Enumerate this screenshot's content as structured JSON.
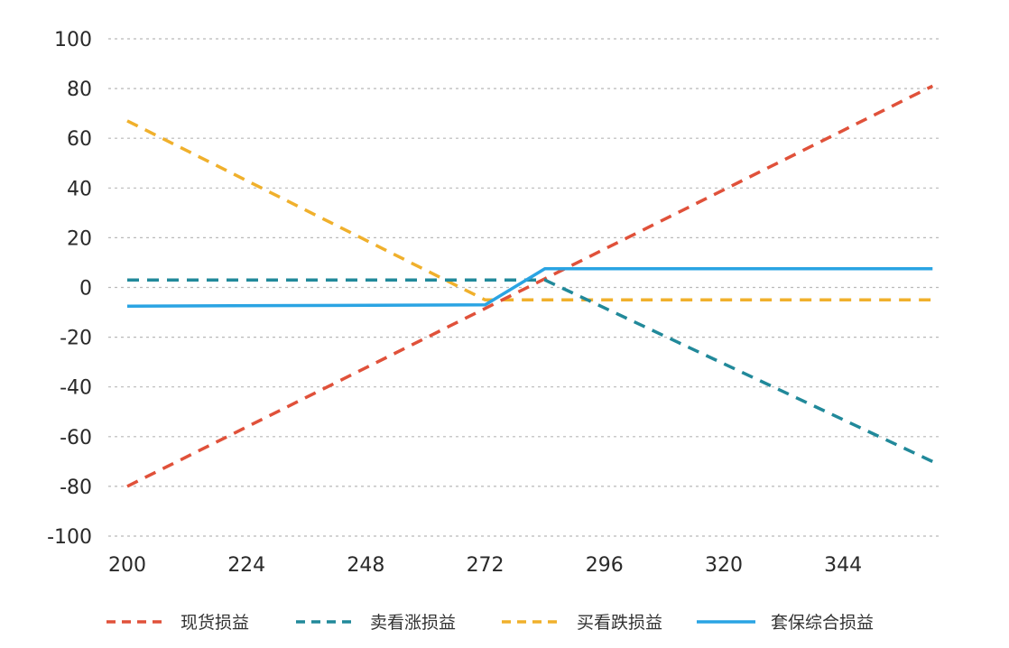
{
  "chart_data": {
    "type": "line",
    "title": "",
    "xlabel": "",
    "ylabel": "",
    "xlim": [
      200,
      365
    ],
    "ylim": [
      -100,
      100
    ],
    "x_ticks": [
      "200",
      "224",
      "248",
      "272",
      "296",
      "320",
      "344"
    ],
    "y_ticks": [
      "100",
      "80",
      "60",
      "40",
      "20",
      "0",
      "-20",
      "-40",
      "-60",
      "-80",
      "-100"
    ],
    "grid": "horizontal dashed",
    "legend_position": "bottom",
    "series": [
      {
        "name": "现货损益",
        "style": "dashed",
        "color": "#e0513a",
        "points": [
          [
            200,
            -80
          ],
          [
            362,
            81
          ]
        ]
      },
      {
        "name": "卖看涨损益",
        "style": "dashed",
        "color": "#21899a",
        "points": [
          [
            200,
            3
          ],
          [
            284,
            3
          ],
          [
            362,
            -70
          ]
        ]
      },
      {
        "name": "买看跌损益",
        "style": "dashed",
        "color": "#f0b02c",
        "points": [
          [
            200,
            67
          ],
          [
            272,
            -5
          ],
          [
            362,
            -5
          ]
        ]
      },
      {
        "name": "套保综合损益",
        "style": "solid",
        "color": "#2aa4e3",
        "points": [
          [
            200,
            -7.5
          ],
          [
            272,
            -7
          ],
          [
            284,
            7.5
          ],
          [
            362,
            7.5
          ]
        ]
      }
    ]
  }
}
